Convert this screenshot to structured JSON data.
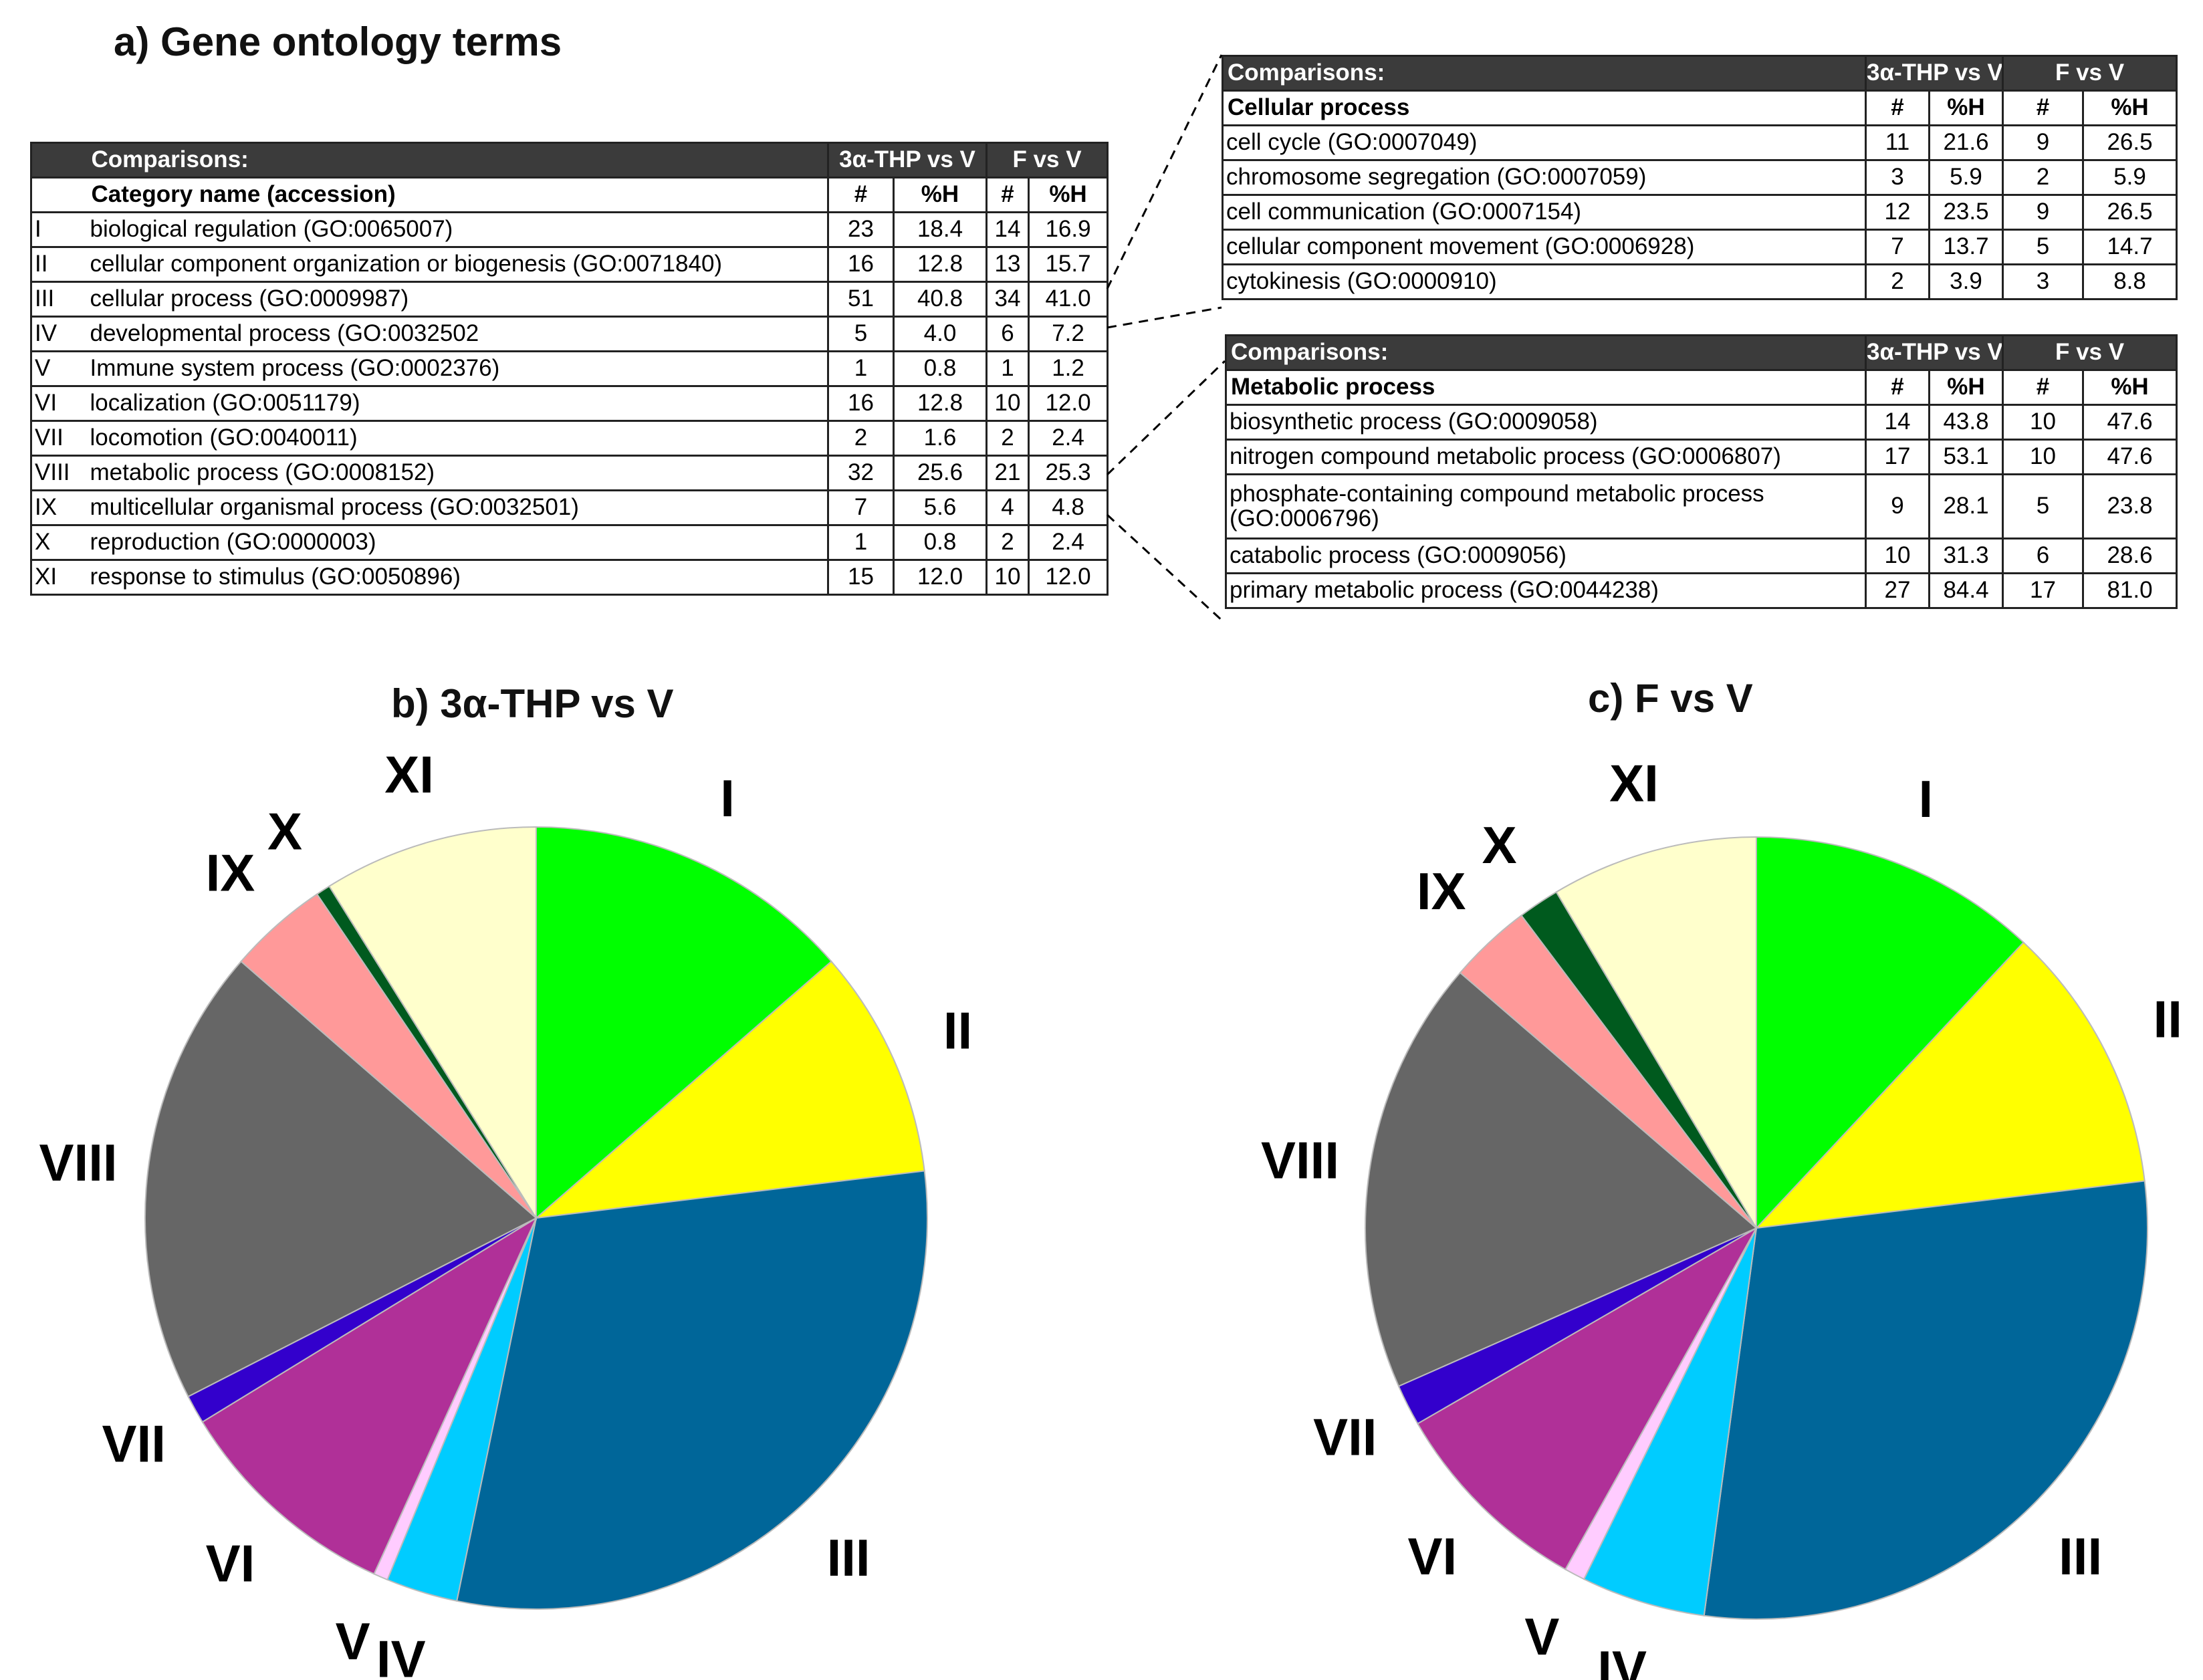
{
  "figure_titles": {
    "a": "a) Gene ontology terms",
    "b": "b) 3α-THP vs V",
    "c": "c) F vs V"
  },
  "main_table": {
    "header": {
      "comparisons": "Comparisons:",
      "group1": "3α-THP vs V",
      "group2": "F vs V"
    },
    "subheader": {
      "category": "Category name (accession)",
      "n1": "#",
      "h1": "%H",
      "n2": "#",
      "h2": "%H"
    },
    "rows": [
      {
        "roman": "I",
        "name": "biological regulation (GO:0065007)",
        "n1": "23",
        "h1": "18.4",
        "n2": "14",
        "h2": "16.9"
      },
      {
        "roman": "II",
        "name": "cellular component organization or biogenesis (GO:0071840)",
        "n1": "16",
        "h1": "12.8",
        "n2": "13",
        "h2": "15.7"
      },
      {
        "roman": "III",
        "name": "cellular process (GO:0009987)",
        "n1": "51",
        "h1": "40.8",
        "n2": "34",
        "h2": "41.0"
      },
      {
        "roman": "IV",
        "name": "developmental process (GO:0032502",
        "n1": "5",
        "h1": "4.0",
        "n2": "6",
        "h2": "7.2"
      },
      {
        "roman": "V",
        "name": "Immune system process (GO:0002376)",
        "n1": "1",
        "h1": "0.8",
        "n2": "1",
        "h2": "1.2"
      },
      {
        "roman": "VI",
        "name": "localization (GO:0051179)",
        "n1": "16",
        "h1": "12.8",
        "n2": "10",
        "h2": "12.0"
      },
      {
        "roman": "VII",
        "name": "locomotion (GO:0040011)",
        "n1": "2",
        "h1": "1.6",
        "n2": "2",
        "h2": "2.4"
      },
      {
        "roman": "VIII",
        "name": "metabolic process (GO:0008152)",
        "n1": "32",
        "h1": "25.6",
        "n2": "21",
        "h2": "25.3"
      },
      {
        "roman": "IX",
        "name": "multicellular organismal process (GO:0032501)",
        "n1": "7",
        "h1": "5.6",
        "n2": "4",
        "h2": "4.8"
      },
      {
        "roman": "X",
        "name": "reproduction (GO:0000003)",
        "n1": "1",
        "h1": "0.8",
        "n2": "2",
        "h2": "2.4"
      },
      {
        "roman": "XI",
        "name": "response to stimulus (GO:0050896)",
        "n1": "15",
        "h1": "12.0",
        "n2": "10",
        "h2": "12.0"
      }
    ]
  },
  "cellular_table": {
    "header": {
      "comparisons": "Comparisons:",
      "group1": "3α-THP vs V",
      "group2": "F vs V"
    },
    "subheader": {
      "category": "Cellular process",
      "n1": "#",
      "h1": "%H",
      "n2": "#",
      "h2": "%H"
    },
    "rows": [
      {
        "name": "cell cycle (GO:0007049)",
        "n1": "11",
        "h1": "21.6",
        "n2": "9",
        "h2": "26.5"
      },
      {
        "name": "chromosome segregation (GO:0007059)",
        "n1": "3",
        "h1": "5.9",
        "n2": "2",
        "h2": "5.9"
      },
      {
        "name": "cell communication (GO:0007154)",
        "n1": "12",
        "h1": "23.5",
        "n2": "9",
        "h2": "26.5"
      },
      {
        "name": "cellular component movement (GO:0006928)",
        "n1": "7",
        "h1": "13.7",
        "n2": "5",
        "h2": "14.7"
      },
      {
        "name": "cytokinesis (GO:0000910)",
        "n1": "2",
        "h1": "3.9",
        "n2": "3",
        "h2": "8.8"
      }
    ]
  },
  "metabolic_table": {
    "header": {
      "comparisons": "Comparisons:",
      "group1": "3α-THP vs V",
      "group2": "F vs V"
    },
    "subheader": {
      "category": "Metabolic process",
      "n1": "#",
      "h1": "%H",
      "n2": "#",
      "h2": "%H"
    },
    "rows": [
      {
        "name": "biosynthetic process (GO:0009058)",
        "n1": "14",
        "h1": "43.8",
        "n2": "10",
        "h2": "47.6"
      },
      {
        "name": "nitrogen compound metabolic process (GO:0006807)",
        "n1": "17",
        "h1": "53.1",
        "n2": "10",
        "h2": "47.6"
      },
      {
        "name": "phosphate-containing compound metabolic process (GO:0006796)",
        "n1": "9",
        "h1": "28.1",
        "n2": "5",
        "h2": "23.8"
      },
      {
        "name": "catabolic process (GO:0009056)",
        "n1": "10",
        "h1": "31.3",
        "n2": "6",
        "h2": "28.6"
      },
      {
        "name": "primary metabolic process (GO:0044238)",
        "n1": "27",
        "h1": "84.4",
        "n2": "17",
        "h2": "81.0"
      }
    ]
  },
  "chart_data": [
    {
      "type": "pie",
      "title": "b) 3α-THP vs V",
      "categories": [
        "I",
        "II",
        "III",
        "IV",
        "V",
        "VI",
        "VII",
        "VIII",
        "IX",
        "X",
        "XI"
      ],
      "values": [
        23,
        16,
        51,
        5,
        1,
        16,
        2,
        32,
        7,
        1,
        15
      ],
      "colors": [
        "#00ff00",
        "#ffff00",
        "#006699",
        "#00ccff",
        "#ffccff",
        "#b03098",
        "#3300cc",
        "#666666",
        "#ff9999",
        "#005a1e",
        "#ffffcc"
      ]
    },
    {
      "type": "pie",
      "title": "c) F vs V",
      "categories": [
        "I",
        "II",
        "III",
        "IV",
        "V",
        "VI",
        "VII",
        "VIII",
        "IX",
        "X",
        "XI"
      ],
      "values": [
        14,
        13,
        34,
        6,
        1,
        10,
        2,
        21,
        4,
        2,
        10
      ],
      "colors": [
        "#00ff00",
        "#ffff00",
        "#006699",
        "#00ccff",
        "#ffccff",
        "#b03098",
        "#3300cc",
        "#666666",
        "#ff9999",
        "#005a1e",
        "#ffffcc"
      ]
    }
  ]
}
